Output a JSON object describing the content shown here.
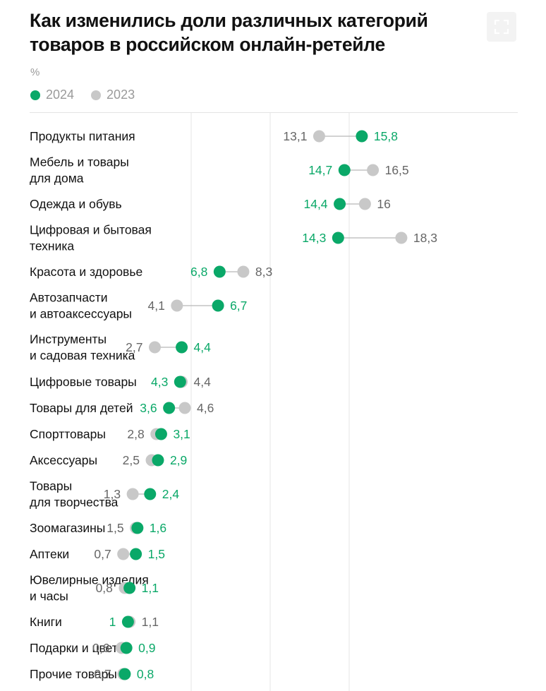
{
  "header": {
    "title": "Как изменились доли различных категорий товаров в российском онлайн-ретейле",
    "unit": "%",
    "expand_icon": "expand-icon"
  },
  "legend": [
    {
      "label": "2024",
      "color": "#0aa868"
    },
    {
      "label": "2023",
      "color": "#c8c8c8"
    }
  ],
  "colors": {
    "y2024": "#0aa868",
    "y2023": "#c8c8c8",
    "gray_text": "#666666",
    "line": "#b8b8b8"
  },
  "chart_data": {
    "type": "dumbbell",
    "title": "Как изменились доли различных категорий товаров в российском онлайн-ретейле",
    "unit": "%",
    "series": [
      {
        "name": "2024"
      },
      {
        "name": "2023"
      }
    ],
    "xlim": [
      0,
      20
    ],
    "grid_step": 5,
    "categories": [
      {
        "label": [
          "Продукты питания"
        ],
        "v2024": 15.8,
        "t2024": "15,8",
        "v2023": 13.1,
        "t2023": "13,1"
      },
      {
        "label": [
          "Мебель и товары",
          "для дома"
        ],
        "v2024": 14.7,
        "t2024": "14,7",
        "v2023": 16.5,
        "t2023": "16,5"
      },
      {
        "label": [
          "Одежда и обувь"
        ],
        "v2024": 14.4,
        "t2024": "14,4",
        "v2023": 16,
        "t2023": "16"
      },
      {
        "label": [
          "Цифровая и бытовая",
          "техника"
        ],
        "v2024": 14.3,
        "t2024": "14,3",
        "v2023": 18.3,
        "t2023": "18,3"
      },
      {
        "label": [
          "Красота и здоровье"
        ],
        "v2024": 6.8,
        "t2024": "6,8",
        "v2023": 8.3,
        "t2023": "8,3"
      },
      {
        "label": [
          "Автозапчасти",
          "и автоаксессуары"
        ],
        "v2024": 6.7,
        "t2024": "6,7",
        "v2023": 4.1,
        "t2023": "4,1"
      },
      {
        "label": [
          "Инструменты",
          "и садовая техника"
        ],
        "v2024": 4.4,
        "t2024": "4,4",
        "v2023": 2.7,
        "t2023": "2,7"
      },
      {
        "label": [
          "Цифровые товары"
        ],
        "v2024": 4.3,
        "t2024": "4,3",
        "v2023": 4.4,
        "t2023": "4,4"
      },
      {
        "label": [
          "Товары для детей"
        ],
        "v2024": 3.6,
        "t2024": "3,6",
        "v2023": 4.6,
        "t2023": "4,6"
      },
      {
        "label": [
          "Спорттовары"
        ],
        "v2024": 3.1,
        "t2024": "3,1",
        "v2023": 2.8,
        "t2023": "2,8"
      },
      {
        "label": [
          "Аксессуары"
        ],
        "v2024": 2.9,
        "t2024": "2,9",
        "v2023": 2.5,
        "t2023": "2,5"
      },
      {
        "label": [
          "Товары",
          "для творчества"
        ],
        "v2024": 2.4,
        "t2024": "2,4",
        "v2023": 1.3,
        "t2023": "1,3"
      },
      {
        "label": [
          "Зоомагазины"
        ],
        "v2024": 1.6,
        "t2024": "1,6",
        "v2023": 1.5,
        "t2023": "1,5"
      },
      {
        "label": [
          "Аптеки"
        ],
        "v2024": 1.5,
        "t2024": "1,5",
        "v2023": 0.7,
        "t2023": "0,7"
      },
      {
        "label": [
          "Ювелирные изделия",
          "и часы"
        ],
        "v2024": 1.1,
        "t2024": "1,1",
        "v2023": 0.8,
        "t2023": "0,8"
      },
      {
        "label": [
          "Книги"
        ],
        "v2024": 1,
        "t2024": "1",
        "v2023": 1.1,
        "t2023": "1,1"
      },
      {
        "label": [
          "Подарки и цветы"
        ],
        "v2024": 0.9,
        "t2024": "0,9",
        "v2023": 0.6,
        "t2023": "0,6"
      },
      {
        "label": [
          "Прочие товары"
        ],
        "v2024": 0.8,
        "t2024": "0,8",
        "v2023": 0.7,
        "t2023": "0,7"
      }
    ]
  }
}
